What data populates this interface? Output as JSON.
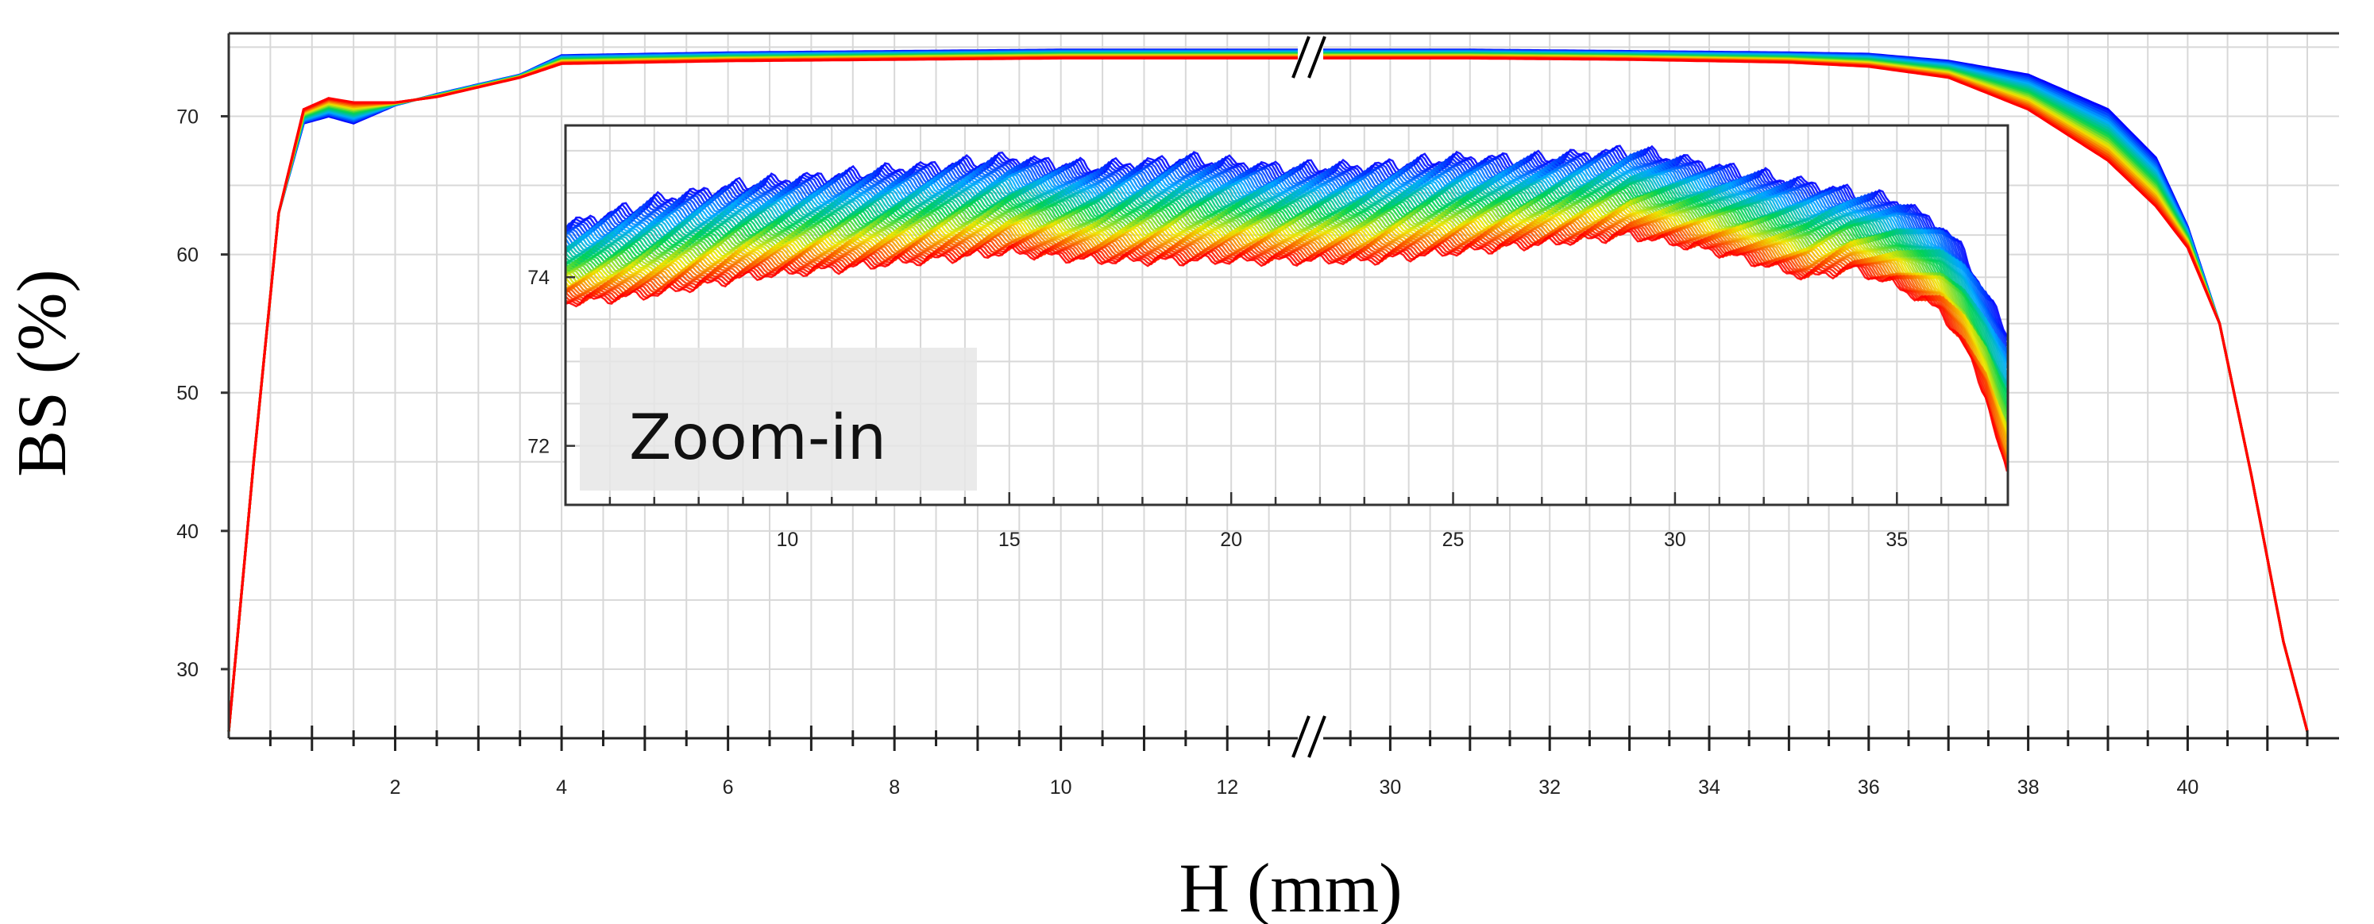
{
  "chart_data": [
    {
      "id": "main",
      "type": "line",
      "title": "",
      "xlabel": "H (mm)",
      "ylabel": "BS (%)",
      "x_break": {
        "left_range": [
          0,
          13
        ],
        "right_range": [
          29,
          41.5
        ],
        "symbol": "//"
      },
      "ylim": [
        25,
        76
      ],
      "yticks": [
        30,
        40,
        50,
        60,
        70
      ],
      "xticks_left": [
        2,
        4,
        6,
        8,
        10,
        12
      ],
      "xticks_right": [
        30,
        32,
        34,
        36,
        38,
        40
      ],
      "grid": true,
      "colormap": "rainbow: blue (first scan) to red (last scan)",
      "series_count": 20,
      "profile_first": {
        "x_left": [
          0,
          0.3,
          0.6,
          0.9,
          1.2,
          1.5,
          2,
          2.5,
          3,
          3.5,
          4,
          6,
          8,
          10,
          12,
          13
        ],
        "y_left": [
          25.5,
          45,
          63,
          69.5,
          70.0,
          69.5,
          70.8,
          71.6,
          72.3,
          73.0,
          74.4,
          74.6,
          74.7,
          74.8,
          74.8,
          74.8
        ],
        "x_right": [
          29,
          31,
          33,
          35,
          36,
          37,
          38,
          39,
          39.6,
          40,
          40.4,
          40.8,
          41.2,
          41.5
        ],
        "y_right": [
          74.8,
          74.8,
          74.7,
          74.6,
          74.5,
          74.0,
          73.0,
          70.5,
          67.0,
          62.0,
          55.0,
          44.0,
          32.0,
          25.5
        ]
      },
      "profile_last": {
        "x_left": [
          0,
          0.3,
          0.6,
          0.9,
          1.2,
          1.5,
          2,
          2.5,
          3,
          3.5,
          4,
          6,
          8,
          10,
          12,
          13
        ],
        "y_left": [
          25.5,
          45,
          63,
          70.5,
          71.3,
          71.0,
          71.0,
          71.4,
          72.1,
          72.8,
          73.8,
          74.0,
          74.1,
          74.2,
          74.2,
          74.2
        ],
        "x_right": [
          29,
          31,
          33,
          35,
          36,
          37,
          38,
          39,
          39.6,
          40,
          40.4,
          40.8,
          41.2,
          41.5
        ],
        "y_right": [
          74.2,
          74.2,
          74.1,
          73.9,
          73.6,
          72.8,
          70.5,
          66.8,
          63.5,
          60.5,
          55.0,
          44.0,
          32.0,
          25.5
        ]
      }
    },
    {
      "id": "inset",
      "type": "line",
      "title": "",
      "annotation": "Zoom-in",
      "xlim": [
        5,
        37.5
      ],
      "ylim": [
        71.3,
        75.8
      ],
      "xticks": [
        10,
        15,
        20,
        25,
        30,
        35
      ],
      "yticks": [
        72,
        74
      ],
      "grid": true,
      "series_count": 60,
      "profile_top": {
        "x": [
          5,
          7,
          9,
          11,
          13,
          15,
          17,
          19,
          21,
          23,
          25,
          27,
          29,
          31,
          33,
          34,
          35,
          36,
          36.5,
          37,
          37.5
        ],
        "y": [
          74.6,
          74.9,
          75.1,
          75.2,
          75.3,
          75.4,
          75.3,
          75.4,
          75.3,
          75.3,
          75.4,
          75.4,
          75.5,
          75.3,
          75.1,
          75.0,
          74.9,
          74.6,
          74.3,
          73.8,
          73.3
        ]
      },
      "profile_bottom": {
        "x": [
          5,
          7,
          9,
          11,
          13,
          15,
          17,
          19,
          21,
          23,
          25,
          27,
          29,
          31,
          33,
          34,
          35,
          36,
          36.5,
          37,
          37.5
        ],
        "y": [
          73.7,
          73.8,
          74.0,
          74.1,
          74.2,
          74.3,
          74.2,
          74.2,
          74.2,
          74.2,
          74.3,
          74.4,
          74.5,
          74.3,
          74.0,
          74.1,
          73.9,
          73.6,
          73.2,
          72.6,
          71.6
        ]
      }
    }
  ]
}
